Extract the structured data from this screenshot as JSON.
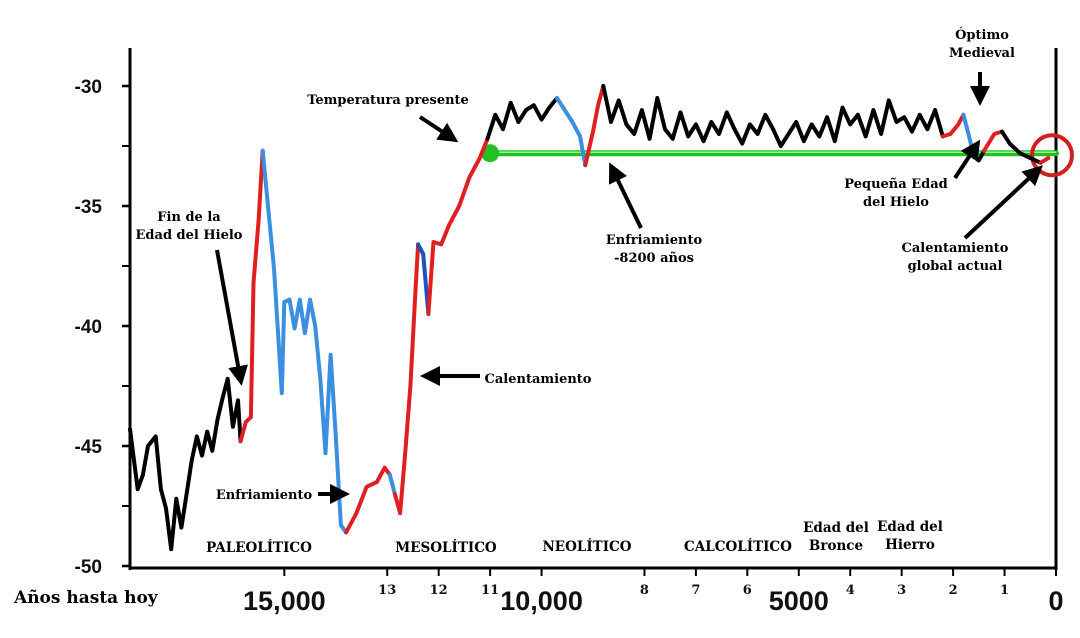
{
  "chart_data": {
    "type": "line",
    "xlabel": "Años hasta hoy",
    "ylabel": "",
    "title": "",
    "ylim": [
      -50,
      -28.5
    ],
    "xlim": [
      18000,
      0
    ],
    "grid": false,
    "y_ticks": [
      "-30",
      "-35",
      "-40",
      "-45",
      "-50"
    ],
    "x_ticks": [
      {
        "label": "15,000",
        "value": 15000,
        "big": true
      },
      {
        "label": "13",
        "value": 13000,
        "big": false
      },
      {
        "label": "12",
        "value": 12000,
        "big": false
      },
      {
        "label": "11",
        "value": 11000,
        "big": false
      },
      {
        "label": "10,000",
        "value": 10000,
        "big": true
      },
      {
        "label": "8",
        "value": 8000,
        "big": false
      },
      {
        "label": "7",
        "value": 7000,
        "big": false
      },
      {
        "label": "6",
        "value": 6000,
        "big": false
      },
      {
        "label": "5000",
        "value": 5000,
        "big": true
      },
      {
        "label": "4",
        "value": 4000,
        "big": false
      },
      {
        "label": "3",
        "value": 3000,
        "big": false
      },
      {
        "label": "2",
        "value": 2000,
        "big": false
      },
      {
        "label": "1",
        "value": 1000,
        "big": false
      },
      {
        "label": "0",
        "value": 0,
        "big": true
      }
    ],
    "series": [
      {
        "color": "#000000",
        "segments": [
          {
            "color": "#000000",
            "points": [
              [
                18000,
                -44.3
              ],
              [
                17850,
                -46.8
              ],
              [
                17750,
                -46.2
              ],
              [
                17650,
                -45.0
              ],
              [
                17500,
                -44.6
              ],
              [
                17400,
                -46.8
              ],
              [
                17300,
                -47.6
              ],
              [
                17200,
                -49.3
              ],
              [
                17100,
                -47.2
              ],
              [
                17000,
                -48.4
              ],
              [
                16900,
                -47.0
              ],
              [
                16800,
                -45.6
              ],
              [
                16700,
                -44.6
              ],
              [
                16600,
                -45.4
              ],
              [
                16500,
                -44.4
              ],
              [
                16400,
                -45.2
              ],
              [
                16300,
                -43.9
              ],
              [
                16200,
                -43.0
              ],
              [
                16100,
                -42.2
              ],
              [
                16000,
                -44.2
              ],
              [
                15900,
                -43.1
              ],
              [
                15850,
                -44.8
              ]
            ]
          },
          {
            "color": "#e02020",
            "points": [
              [
                15850,
                -44.8
              ],
              [
                15750,
                -44.0
              ],
              [
                15650,
                -43.8
              ],
              [
                15600,
                -38.2
              ],
              [
                15500,
                -35.6
              ],
              [
                15420,
                -32.7
              ]
            ]
          },
          {
            "color": "#3a8fe0",
            "points": [
              [
                15420,
                -32.7
              ],
              [
                15300,
                -35.4
              ],
              [
                15200,
                -37.6
              ],
              [
                15050,
                -42.8
              ],
              [
                15000,
                -39.0
              ],
              [
                14900,
                -38.9
              ],
              [
                14800,
                -40.1
              ],
              [
                14700,
                -38.9
              ],
              [
                14600,
                -40.3
              ],
              [
                14500,
                -38.9
              ],
              [
                14400,
                -40.0
              ],
              [
                14300,
                -42.2
              ],
              [
                14200,
                -45.3
              ],
              [
                14100,
                -41.2
              ],
              [
                14000,
                -44.6
              ],
              [
                13900,
                -48.3
              ],
              [
                13800,
                -48.6
              ]
            ]
          },
          {
            "color": "#e02020",
            "points": [
              [
                13800,
                -48.6
              ],
              [
                13600,
                -47.8
              ],
              [
                13400,
                -46.7
              ],
              [
                13200,
                -46.5
              ],
              [
                13050,
                -45.9
              ],
              [
                12950,
                -46.2
              ]
            ]
          },
          {
            "color": "#3a8fe0",
            "points": [
              [
                12950,
                -46.2
              ],
              [
                12850,
                -47.0
              ]
            ]
          },
          {
            "color": "#e02020",
            "points": [
              [
                12850,
                -47.0
              ],
              [
                12750,
                -47.8
              ],
              [
                12650,
                -45.3
              ],
              [
                12550,
                -42.5
              ],
              [
                12450,
                -38.5
              ],
              [
                12400,
                -36.6
              ]
            ]
          },
          {
            "color": "#2050c0",
            "points": [
              [
                12400,
                -36.6
              ],
              [
                12300,
                -37.0
              ],
              [
                12200,
                -39.5
              ]
            ]
          },
          {
            "color": "#e02020",
            "points": [
              [
                12200,
                -39.5
              ],
              [
                12100,
                -36.5
              ],
              [
                11950,
                -36.6
              ],
              [
                11800,
                -35.8
              ],
              [
                11600,
                -35.0
              ],
              [
                11400,
                -33.8
              ],
              [
                11200,
                -33.0
              ],
              [
                11050,
                -32.2
              ]
            ]
          },
          {
            "color": "#000000",
            "points": [
              [
                11050,
                -32.2
              ],
              [
                10900,
                -31.2
              ],
              [
                10750,
                -31.8
              ],
              [
                10600,
                -30.7
              ],
              [
                10450,
                -31.5
              ],
              [
                10300,
                -31.0
              ],
              [
                10150,
                -30.8
              ],
              [
                10000,
                -31.4
              ],
              [
                9850,
                -30.9
              ],
              [
                9700,
                -30.5
              ]
            ]
          },
          {
            "color": "#3a8fe0",
            "points": [
              [
                9700,
                -30.5
              ],
              [
                9550,
                -31.0
              ],
              [
                9400,
                -31.5
              ],
              [
                9250,
                -32.1
              ],
              [
                9150,
                -33.3
              ]
            ]
          },
          {
            "color": "#e02020",
            "points": [
              [
                9150,
                -33.3
              ],
              [
                9000,
                -31.9
              ],
              [
                8900,
                -30.8
              ],
              [
                8800,
                -30.0
              ]
            ]
          },
          {
            "color": "#000000",
            "points": [
              [
                8800,
                -30.0
              ],
              [
                8650,
                -31.5
              ],
              [
                8500,
                -30.6
              ],
              [
                8350,
                -31.6
              ],
              [
                8200,
                -32.0
              ],
              [
                8050,
                -31.0
              ],
              [
                7900,
                -32.2
              ],
              [
                7750,
                -30.5
              ],
              [
                7600,
                -31.8
              ],
              [
                7450,
                -32.2
              ],
              [
                7300,
                -31.1
              ],
              [
                7150,
                -32.1
              ],
              [
                7000,
                -31.6
              ],
              [
                6850,
                -32.3
              ],
              [
                6700,
                -31.5
              ],
              [
                6550,
                -32.0
              ],
              [
                6400,
                -31.1
              ],
              [
                6250,
                -31.8
              ],
              [
                6100,
                -32.4
              ],
              [
                5950,
                -31.6
              ],
              [
                5800,
                -32.0
              ],
              [
                5650,
                -31.2
              ],
              [
                5500,
                -31.8
              ],
              [
                5350,
                -32.5
              ],
              [
                5200,
                -32.0
              ],
              [
                5050,
                -31.5
              ],
              [
                4900,
                -32.3
              ],
              [
                4750,
                -31.6
              ],
              [
                4600,
                -32.1
              ],
              [
                4450,
                -31.3
              ],
              [
                4300,
                -32.3
              ],
              [
                4150,
                -30.9
              ],
              [
                4000,
                -31.6
              ],
              [
                3850,
                -31.2
              ],
              [
                3700,
                -32.1
              ],
              [
                3550,
                -31.0
              ],
              [
                3400,
                -32.0
              ],
              [
                3250,
                -30.6
              ],
              [
                3100,
                -31.5
              ],
              [
                2950,
                -31.3
              ],
              [
                2800,
                -31.9
              ],
              [
                2650,
                -31.2
              ],
              [
                2500,
                -31.8
              ],
              [
                2350,
                -31.0
              ],
              [
                2200,
                -32.1
              ]
            ]
          },
          {
            "color": "#e02020",
            "points": [
              [
                2200,
                -32.1
              ],
              [
                2050,
                -32.0
              ],
              [
                1900,
                -31.6
              ],
              [
                1800,
                -31.2
              ]
            ]
          },
          {
            "color": "#3a8fe0",
            "points": [
              [
                1800,
                -31.2
              ],
              [
                1700,
                -32.0
              ],
              [
                1600,
                -32.9
              ]
            ]
          },
          {
            "color": "#000000",
            "points": [
              [
                1600,
                -32.9
              ],
              [
                1500,
                -33.1
              ],
              [
                1400,
                -32.7
              ]
            ]
          },
          {
            "color": "#e02020",
            "points": [
              [
                1400,
                -32.7
              ],
              [
                1200,
                -32.0
              ],
              [
                1050,
                -31.9
              ]
            ]
          },
          {
            "color": "#000000",
            "points": [
              [
                1050,
                -31.9
              ],
              [
                900,
                -32.4
              ],
              [
                700,
                -32.8
              ],
              [
                500,
                -33.0
              ],
              [
                300,
                -33.2
              ]
            ]
          },
          {
            "color": "#e02020",
            "points": [
              [
                300,
                -33.2
              ],
              [
                150,
                -33.0
              ]
            ]
          }
        ]
      }
    ],
    "reference_line": {
      "label": "Temperatura presente",
      "from": 11000,
      "to": 0,
      "value": -32.8,
      "color": "#22c022"
    },
    "annotations": [
      {
        "id": "ann-temperatura-presente",
        "lines": [
          "Temperatura presente"
        ]
      },
      {
        "id": "ann-fin-edad-hielo",
        "lines": [
          "Fin de la",
          "Edad del Hielo"
        ]
      },
      {
        "id": "ann-enfriamiento-1",
        "lines": [
          "Enfriamiento"
        ]
      },
      {
        "id": "ann-calentamiento",
        "lines": [
          "Calentamiento"
        ]
      },
      {
        "id": "ann-enfriamiento-8200",
        "lines": [
          "Enfriamiento",
          "-8200 años"
        ]
      },
      {
        "id": "ann-optimo-medieval",
        "lines": [
          "Óptimo",
          "Medieval"
        ]
      },
      {
        "id": "ann-pequena-edad",
        "lines": [
          "Pequeña Edad",
          "del Hielo"
        ]
      },
      {
        "id": "ann-calentamiento-global",
        "lines": [
          "Calentamiento",
          "global actual"
        ]
      }
    ],
    "periods": [
      {
        "id": "period-paleolitico",
        "lines": [
          "PALEOLÍTICO"
        ]
      },
      {
        "id": "period-mesolitico",
        "lines": [
          "MESOLÍTICO"
        ]
      },
      {
        "id": "period-neolitico",
        "lines": [
          "NEOLÍTICO"
        ]
      },
      {
        "id": "period-calcolitico",
        "lines": [
          "CALCOLÍTICO"
        ]
      },
      {
        "id": "period-edad-bronce",
        "lines": [
          "Edad del",
          "Bronce"
        ]
      },
      {
        "id": "period-edad-hierro",
        "lines": [
          "Edad del",
          "Hierro"
        ]
      }
    ]
  }
}
